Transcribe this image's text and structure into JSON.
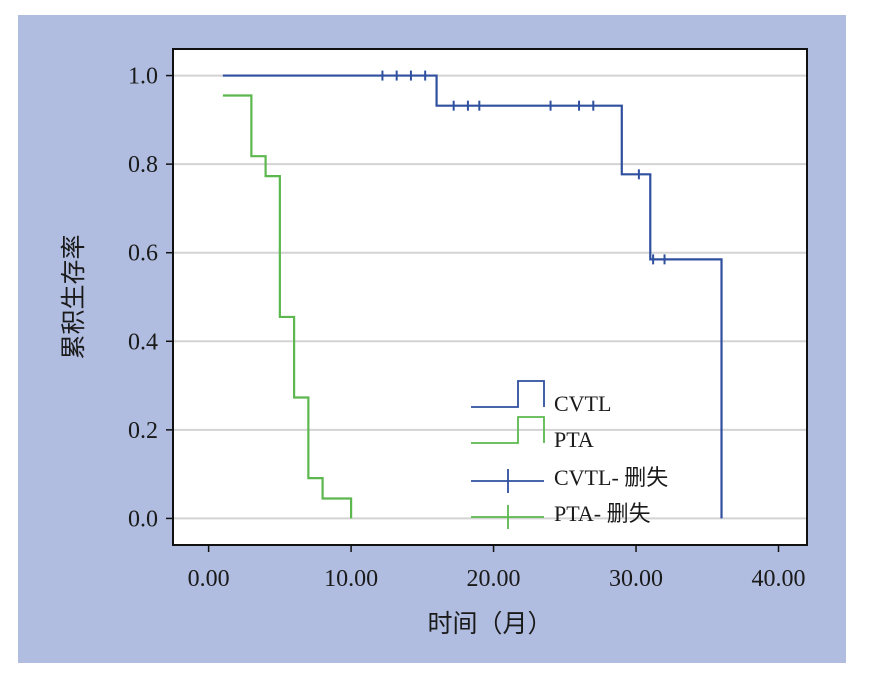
{
  "chart_data": {
    "type": "line",
    "title": "",
    "xlabel": "时间（月）",
    "ylabel": "累积生存率",
    "xlim": [
      -2.5,
      42
    ],
    "ylim": [
      -0.06,
      1.06
    ],
    "xticks": [
      0,
      10,
      20,
      30,
      40
    ],
    "xtick_labels": [
      "0.00",
      "10.00",
      "20.00",
      "30.00",
      "40.00"
    ],
    "yticks": [
      0,
      0.2,
      0.4,
      0.6,
      0.8,
      1.0
    ],
    "ytick_labels": [
      "0.0",
      "0.2",
      "0.4",
      "0.6",
      "0.8",
      "1.0"
    ],
    "grid": "horizontal",
    "legend_position": "bottom-right",
    "series": [
      {
        "name": "CVTL",
        "color": "#2f4f9f",
        "steps": [
          [
            1,
            1.0
          ],
          [
            16,
            0.932
          ],
          [
            29,
            0.777
          ],
          [
            31,
            0.585
          ],
          [
            36,
            0.0
          ]
        ],
        "censored": [
          [
            12.2,
            1.0
          ],
          [
            13.2,
            1.0
          ],
          [
            14.2,
            1.0
          ],
          [
            15.2,
            1.0
          ],
          [
            17.2,
            0.932
          ],
          [
            18.2,
            0.932
          ],
          [
            19.0,
            0.932
          ],
          [
            24.0,
            0.932
          ],
          [
            26.0,
            0.932
          ],
          [
            27.0,
            0.932
          ],
          [
            30.2,
            0.777
          ],
          [
            31.2,
            0.585
          ],
          [
            32.0,
            0.585
          ]
        ]
      },
      {
        "name": "PTA",
        "color": "#5cb84e",
        "steps": [
          [
            1,
            0.955
          ],
          [
            3,
            0.818
          ],
          [
            4,
            0.773
          ],
          [
            5,
            0.455
          ],
          [
            6,
            0.273
          ],
          [
            7,
            0.091
          ],
          [
            8,
            0.045
          ],
          [
            10,
            0.0
          ]
        ],
        "censored": []
      }
    ],
    "legend": [
      {
        "label": "CVTL",
        "kind": "step",
        "color": "#2f4f9f"
      },
      {
        "label": "PTA",
        "kind": "step",
        "color": "#5cb84e"
      },
      {
        "label": "CVTL- 删失",
        "kind": "censor",
        "color": "#2f4f9f"
      },
      {
        "label": "PTA- 删失",
        "kind": "censor",
        "color": "#5cb84e"
      }
    ]
  },
  "colors": {
    "background": "#b0bde0",
    "plot_bg": "#ffffff",
    "grid": "#d3d3d3"
  }
}
